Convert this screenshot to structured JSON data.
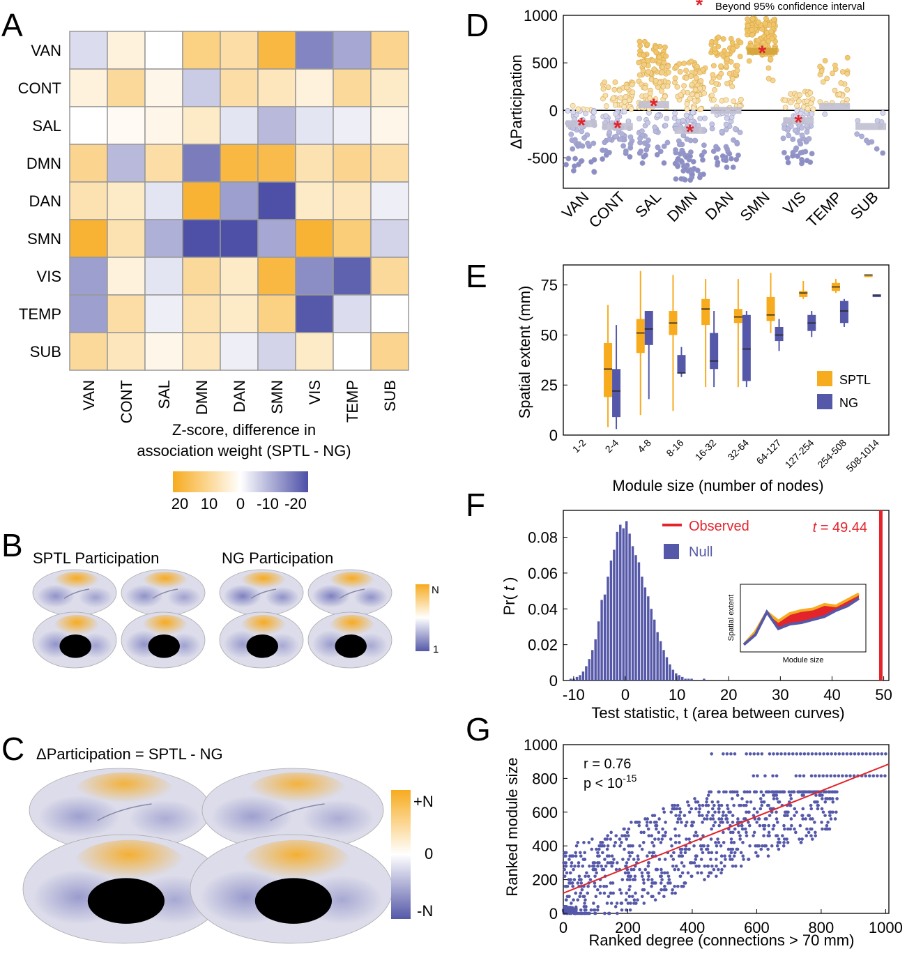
{
  "colors": {
    "orange": "#f7ab1f",
    "purple": "#5558a8",
    "red": "#e3242b",
    "gray": "#c8c4bc",
    "grid_line": "#999999"
  },
  "panels": {
    "A": "A",
    "B": "B",
    "C": "C",
    "D": "D",
    "E": "E",
    "F": "F",
    "G": "G"
  },
  "panel_b": {
    "title_left": "SPTL Participation",
    "title_right": "NG Participation",
    "scale_top": "N",
    "scale_bottom": "1"
  },
  "panel_c": {
    "title": "ΔParticipation = SPTL - NG",
    "scale_top": "+N",
    "scale_mid": "0",
    "scale_bottom": "-N"
  },
  "chart_data": [
    {
      "panel": "A",
      "type": "heatmap",
      "rows": [
        "VAN",
        "CONT",
        "SAL",
        "DMN",
        "DAN",
        "SMN",
        "VIS",
        "TEMP",
        "SUB"
      ],
      "cols": [
        "VAN",
        "CONT",
        "SAL",
        "DMN",
        "DAN",
        "SMN",
        "VIS",
        "TEMP",
        "SUB"
      ],
      "values": [
        [
          -4,
          3,
          0,
          11,
          8,
          17,
          -14,
          -10,
          10
        ],
        [
          3,
          9,
          2,
          -6,
          8,
          6,
          3,
          9,
          5
        ],
        [
          0,
          1,
          2,
          5,
          -3,
          -8,
          -3,
          -2,
          2
        ],
        [
          10,
          -8,
          8,
          -15,
          17,
          16,
          7,
          10,
          8
        ],
        [
          7,
          5,
          -3,
          18,
          -11,
          -22,
          5,
          6,
          -2
        ],
        [
          18,
          7,
          -9,
          -22,
          -20,
          -10,
          18,
          12,
          -5
        ],
        [
          -11,
          3,
          -3,
          9,
          5,
          17,
          -13,
          -18,
          9
        ],
        [
          -11,
          8,
          -2,
          7,
          5,
          11,
          -19,
          -4,
          0
        ],
        [
          9,
          6,
          2,
          6,
          -2,
          -5,
          5,
          0,
          10
        ]
      ],
      "colorbar_labels": [
        "20",
        "10",
        "0",
        "-10",
        "-20"
      ],
      "colorbar_range": [
        20,
        -20
      ],
      "xlabel": "Z-score, difference in\nassociation weight (SPTL - NG)"
    },
    {
      "panel": "D",
      "type": "scatter",
      "categories": [
        "VAN",
        "CONT",
        "SAL",
        "DMN",
        "DAN",
        "SMN",
        "VIS",
        "TEMP",
        "SUB"
      ],
      "ylabel": "ΔParticipation",
      "ylim": [
        -820,
        1000
      ],
      "yticks": [
        -500,
        0,
        500,
        1000
      ],
      "ytick_labels": [
        "-500",
        "0",
        "500",
        "1000"
      ],
      "legend": "Beyond 95% confidence interval",
      "means": [
        -140,
        -170,
        60,
        -210,
        0,
        620,
        -110,
        40,
        -170
      ],
      "significant": [
        true,
        true,
        true,
        true,
        false,
        true,
        true,
        false,
        false
      ],
      "point_spread": [
        {
          "min": -650,
          "max": 50,
          "n": 60
        },
        {
          "min": -520,
          "max": 300,
          "n": 90
        },
        {
          "min": -560,
          "max": 730,
          "n": 140
        },
        {
          "min": -740,
          "max": 520,
          "n": 160
        },
        {
          "min": -600,
          "max": 780,
          "n": 120
        },
        {
          "min": 100,
          "max": 970,
          "n": 130
        },
        {
          "min": -560,
          "max": 200,
          "n": 90
        },
        {
          "min": -50,
          "max": 560,
          "n": 30
        },
        {
          "min": -540,
          "max": 0,
          "n": 12
        }
      ]
    },
    {
      "panel": "E",
      "type": "box",
      "categories": [
        "1-2",
        "2-4",
        "4-8",
        "8-16",
        "16-32",
        "32-64",
        "64-127",
        "127-254",
        "254-508",
        "508-1014"
      ],
      "xlabel": "Module size (number of nodes)",
      "ylabel": "Spatial extent (mm)",
      "ylim": [
        0,
        85
      ],
      "yticks": [
        0,
        25,
        50,
        75
      ],
      "series": [
        {
          "name": "SPTL",
          "boxes": [
            {
              "lo": 0,
              "q1": 0,
              "med": 0,
              "q3": 0,
              "hi": 0
            },
            {
              "lo": 4,
              "q1": 19,
              "med": 33,
              "q3": 46,
              "hi": 65
            },
            {
              "lo": 10,
              "q1": 41,
              "med": 51,
              "q3": 58,
              "hi": 82
            },
            {
              "lo": 12,
              "q1": 50,
              "med": 56,
              "q3": 62,
              "hi": 80
            },
            {
              "lo": 24,
              "q1": 55,
              "med": 63,
              "q3": 68,
              "hi": 78
            },
            {
              "lo": 24,
              "q1": 56,
              "med": 59,
              "q3": 63,
              "hi": 78
            },
            {
              "lo": 51,
              "q1": 57,
              "med": 60,
              "q3": 69,
              "hi": 81
            },
            {
              "lo": 68,
              "q1": 69,
              "med": 71,
              "q3": 72,
              "hi": 77
            },
            {
              "lo": 71,
              "q1": 72,
              "med": 74,
              "q3": 76,
              "hi": 78
            },
            {
              "lo": 79,
              "q1": 79,
              "med": 80,
              "q3": 80,
              "hi": 80
            }
          ]
        },
        {
          "name": "NG",
          "boxes": [
            {
              "lo": 0,
              "q1": 0,
              "med": 0,
              "q3": 0,
              "hi": 0
            },
            {
              "lo": 3,
              "q1": 9,
              "med": 22,
              "q3": 33,
              "hi": 55
            },
            {
              "lo": 18,
              "q1": 45,
              "med": 53,
              "q3": 62,
              "hi": 62
            },
            {
              "lo": 29,
              "q1": 31,
              "med": 31,
              "q3": 40,
              "hi": 44
            },
            {
              "lo": 24,
              "q1": 33,
              "med": 37,
              "q3": 51,
              "hi": 62
            },
            {
              "lo": 24,
              "q1": 27,
              "med": 43,
              "q3": 60,
              "hi": 62
            },
            {
              "lo": 42,
              "q1": 47,
              "med": 50,
              "q3": 54,
              "hi": 58
            },
            {
              "lo": 49,
              "q1": 52,
              "med": 56,
              "q3": 60,
              "hi": 62
            },
            {
              "lo": 54,
              "q1": 56,
              "med": 62,
              "q3": 67,
              "hi": 68
            },
            {
              "lo": 69,
              "q1": 69,
              "med": 70,
              "q3": 70,
              "hi": 70
            }
          ]
        }
      ]
    },
    {
      "panel": "F",
      "type": "bar",
      "title": "",
      "xlabel": "Test statistic, t (area between curves)",
      "ylabel_prefix": "Pr(",
      "ylabel_var": "t",
      "ylabel_suffix": ")",
      "xlim": [
        -12,
        51
      ],
      "ylim": [
        0,
        0.095
      ],
      "xticks": [
        -10,
        0,
        10,
        20,
        30,
        40,
        50
      ],
      "yticks": [
        0,
        0.02,
        0.04,
        0.06,
        0.08
      ],
      "ytick_labels": [
        "0",
        "0.02",
        "0.04",
        "0.06",
        "0.08"
      ],
      "bin_width": 0.6,
      "x": [
        -10.8,
        -10.2,
        -9.6,
        -9.0,
        -8.4,
        -7.8,
        -7.2,
        -6.6,
        -6.0,
        -5.4,
        -4.8,
        -4.2,
        -3.6,
        -3.0,
        -2.4,
        -1.8,
        -1.2,
        -0.6,
        0.0,
        0.6,
        1.2,
        1.8,
        2.4,
        3.0,
        3.6,
        4.2,
        4.8,
        5.4,
        6.0,
        6.6,
        7.2,
        7.8,
        8.4,
        9.0,
        9.6,
        10.2,
        10.8,
        11.4,
        12.0,
        12.6,
        15.0
      ],
      "values": [
        0.001,
        0.001,
        0.002,
        0.003,
        0.005,
        0.008,
        0.012,
        0.017,
        0.023,
        0.033,
        0.045,
        0.048,
        0.058,
        0.067,
        0.073,
        0.083,
        0.087,
        0.085,
        0.089,
        0.082,
        0.075,
        0.07,
        0.066,
        0.058,
        0.052,
        0.047,
        0.04,
        0.034,
        0.027,
        0.022,
        0.017,
        0.013,
        0.009,
        0.006,
        0.004,
        0.003,
        0.002,
        0.001,
        0.001,
        0.001,
        0.001
      ],
      "observed": 49.44,
      "observed_label_var": "t",
      "observed_label_value": " = 49.44",
      "legend": [
        "Observed",
        "Null"
      ],
      "inset": {
        "xlabel": "Module size",
        "ylabel": "Spatial extent",
        "sptl": [
          5,
          22,
          48,
          36,
          46,
          50,
          52,
          58,
          56,
          64,
          72
        ],
        "ng": [
          5,
          18,
          48,
          26,
          32,
          34,
          38,
          42,
          50,
          56,
          66
        ]
      }
    },
    {
      "panel": "G",
      "type": "scatter",
      "xlabel": "Ranked degree (connections > 70 mm)",
      "ylabel": "Ranked module size",
      "xlim": [
        0,
        1010
      ],
      "ylim": [
        0,
        1000
      ],
      "xticks": [
        0,
        200,
        400,
        600,
        800,
        1000
      ],
      "yticks": [
        0,
        200,
        400,
        600,
        800,
        1000
      ],
      "annotation_r": "r = 0.76",
      "annotation_p_prefix": "p < 10",
      "annotation_p_exp": "-15",
      "fit": {
        "x": [
          0,
          1010
        ],
        "y": [
          120,
          885
        ]
      },
      "plateaus": [
        815,
        945
      ]
    }
  ]
}
